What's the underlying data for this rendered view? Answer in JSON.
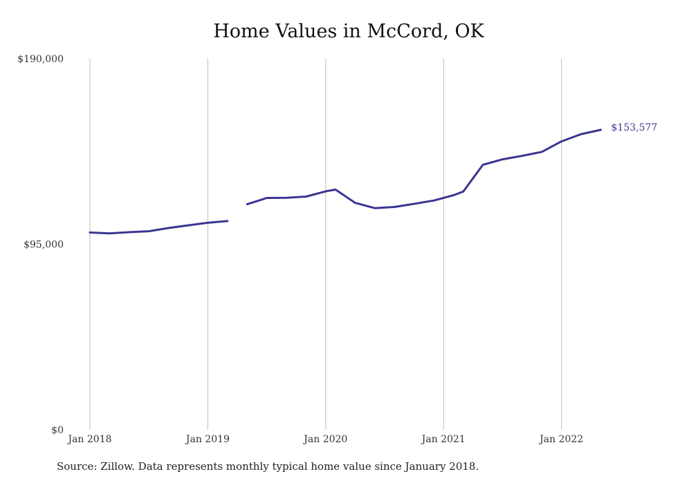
{
  "chart_data": {
    "type": "line",
    "title": "Home Values in McCord, OK",
    "xlabel": "",
    "ylabel": "",
    "ylim": [
      0,
      190000
    ],
    "y_ticks": [
      "$0",
      "$95,000",
      "$190,000"
    ],
    "y_tick_values": [
      0,
      95000,
      190000
    ],
    "x_ticks": [
      "Jan 2018",
      "Jan 2019",
      "Jan 2020",
      "Jan 2021",
      "Jan 2022"
    ],
    "x_tick_values": [
      "2018-01",
      "2019-01",
      "2020-01",
      "2021-01",
      "2022-01"
    ],
    "grid": "vertical",
    "line_color": "#3a3591",
    "series": [
      {
        "points": [
          {
            "x": "2018-01",
            "y": 101000
          },
          {
            "x": "2018-03",
            "y": 100600
          },
          {
            "x": "2018-05",
            "y": 101200
          },
          {
            "x": "2018-07",
            "y": 101700
          },
          {
            "x": "2018-09",
            "y": 103300
          },
          {
            "x": "2018-11",
            "y": 104700
          },
          {
            "x": "2019-01",
            "y": 106000
          },
          {
            "x": "2019-03",
            "y": 106900
          },
          {
            "x": "2019-06",
            "y": null
          },
          {
            "x": "2019-05",
            "y": 115500
          },
          {
            "x": "2019-07",
            "y": 118700
          },
          {
            "x": "2019-09",
            "y": 118800
          },
          {
            "x": "2019-11",
            "y": 119400
          },
          {
            "x": "2020-01",
            "y": 122100
          },
          {
            "x": "2020-02",
            "y": 123000
          },
          {
            "x": "2020-04",
            "y": 116200
          },
          {
            "x": "2020-06",
            "y": 113500
          },
          {
            "x": "2020-08",
            "y": 114100
          },
          {
            "x": "2020-10",
            "y": 115700
          },
          {
            "x": "2020-12",
            "y": 117400
          },
          {
            "x": "2021-02",
            "y": 120100
          },
          {
            "x": "2021-03",
            "y": 122000
          },
          {
            "x": "2021-05",
            "y": 135700
          },
          {
            "x": "2021-07",
            "y": 138500
          },
          {
            "x": "2021-09",
            "y": 140300
          },
          {
            "x": "2021-11",
            "y": 142300
          },
          {
            "x": "2022-01",
            "y": 147700
          },
          {
            "x": "2022-03",
            "y": 151400
          },
          {
            "x": "2022-05",
            "y": 153577
          }
        ]
      }
    ],
    "end_label": "$153,577"
  },
  "source_note": "Source: Zillow. Data represents monthly typical home value since January 2018."
}
